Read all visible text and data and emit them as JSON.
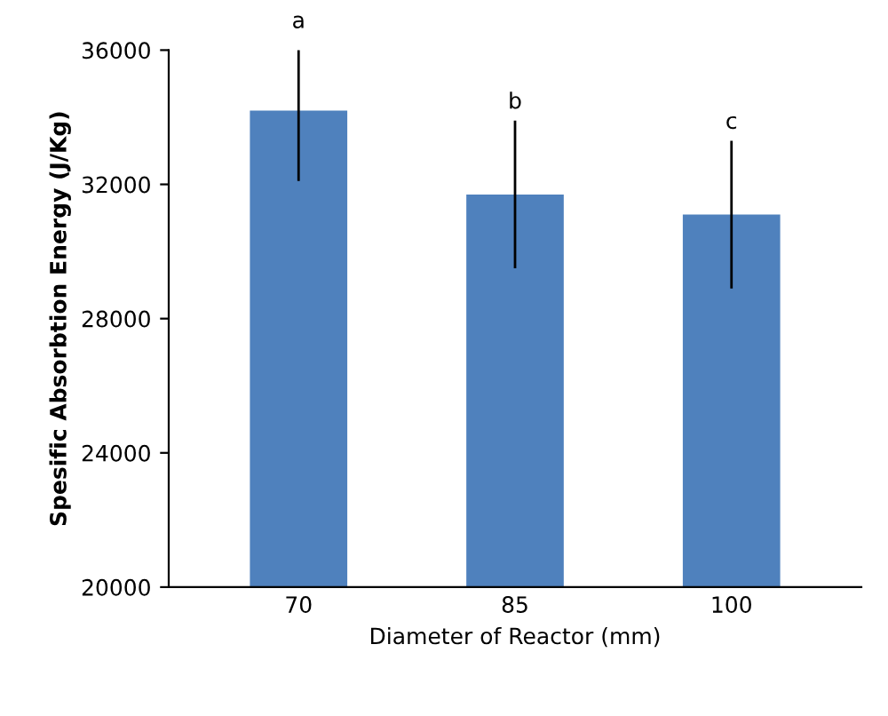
{
  "chart_data": {
    "type": "bar",
    "xlabel": "Diameter of Reactor (mm)",
    "ylabel": "Spesific Absorbtion Energy (J/Kg)",
    "categories": [
      "70",
      "85",
      "100"
    ],
    "values": [
      34200,
      31700,
      31100
    ],
    "errors": [
      2100,
      2200,
      2200
    ],
    "color": "#4f81bd",
    "ylim": [
      20000,
      36000
    ],
    "yticks": [
      20000,
      24000,
      28000,
      32000,
      36000
    ],
    "annotations": [
      "a",
      "b",
      "c"
    ],
    "grid": false
  }
}
